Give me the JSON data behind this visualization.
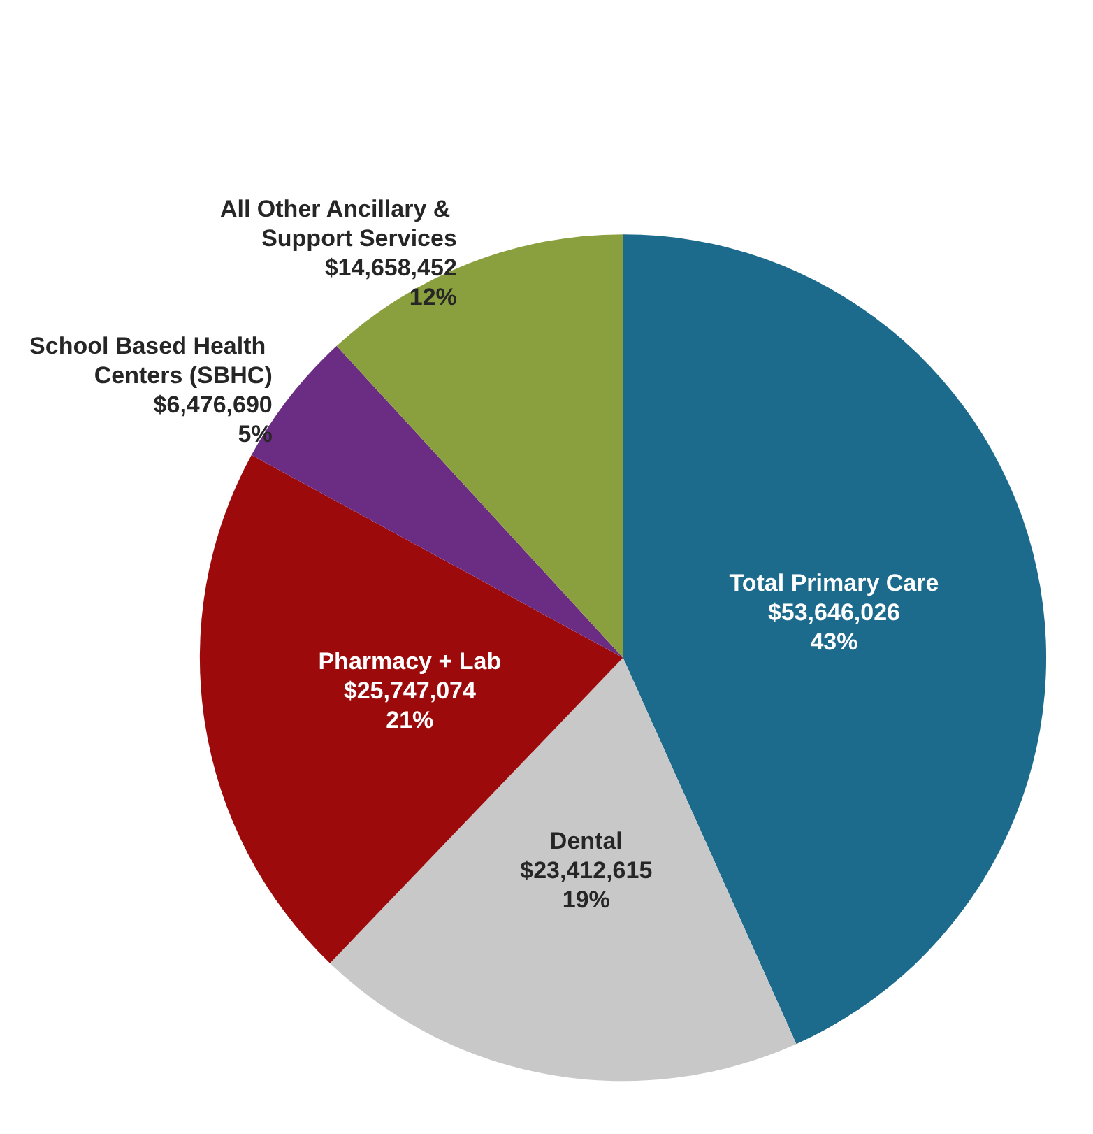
{
  "chart_data": {
    "type": "pie",
    "categories": [
      "Total Primary Care",
      "Dental",
      "Pharmacy + Lab",
      "School Based Health Centers (SBHC)",
      "All Other Ancillary & Support Services"
    ],
    "values": [
      53646026,
      23412615,
      25747074,
      6476690,
      14658452
    ],
    "colors": [
      "#1c6a8c",
      "#c8c8c8",
      "#9c0a0c",
      "#6b2d83",
      "#8aa03e"
    ],
    "value_labels": [
      "$53,646,026\n43%",
      "$23,412,615\n19%",
      "$25,747,074\n21%",
      "$6,476,690\n5%",
      "$14,658,452\n12%"
    ]
  }
}
